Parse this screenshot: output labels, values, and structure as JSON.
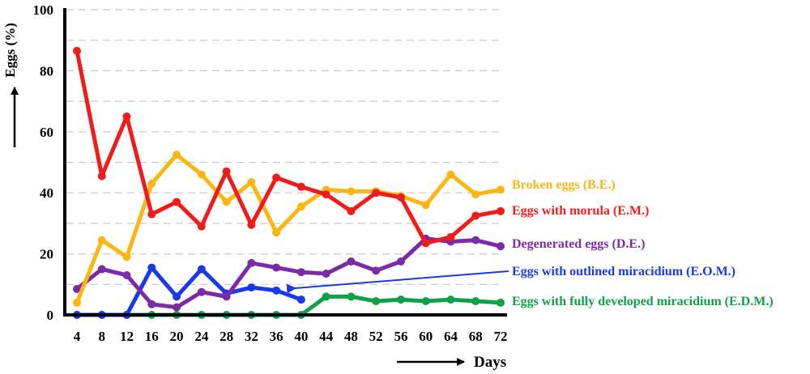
{
  "chart_data": {
    "type": "line",
    "ylabel": "Eggs (%)",
    "xlabel": "Days",
    "ylim": [
      0,
      100
    ],
    "yticks": [
      "0",
      "20",
      "40",
      "60",
      "80",
      "100"
    ],
    "x": [
      4,
      8,
      12,
      16,
      20,
      24,
      28,
      32,
      36,
      40,
      44,
      48,
      52,
      56,
      60,
      64,
      68,
      72
    ],
    "xtick_labels": [
      "4",
      "8",
      "12",
      "16",
      "20",
      "24",
      "28",
      "32",
      "36",
      "40",
      "44",
      "48",
      "52",
      "56",
      "60",
      "64",
      "68",
      "72"
    ],
    "grid": "horizontal dashed",
    "series": [
      {
        "name": "Broken eggs (B.E.)",
        "color": "#fbb612",
        "x": [
          4,
          8,
          12,
          16,
          20,
          24,
          28,
          32,
          36,
          40,
          44,
          48,
          52,
          56,
          60,
          64,
          68,
          72
        ],
        "values": [
          4,
          24.5,
          19,
          43,
          52.5,
          46,
          37,
          43.5,
          27,
          35.5,
          41,
          40.5,
          40.5,
          39,
          36,
          46,
          39.5,
          41
        ]
      },
      {
        "name": "Eggs with morula (E.M.)",
        "color": "#f01c1c",
        "x": [
          4,
          8,
          12,
          16,
          20,
          24,
          28,
          32,
          36,
          40,
          44,
          48,
          52,
          56,
          60,
          64,
          68,
          72
        ],
        "values": [
          86.5,
          45.5,
          65,
          33,
          37,
          29,
          47,
          29.5,
          45,
          42,
          39.5,
          34,
          40,
          38.5,
          23.5,
          25.5,
          32.5,
          34
        ]
      },
      {
        "name": "Degenerated eggs (D.E.)",
        "color": "#7b2aa8",
        "x": [
          4,
          8,
          12,
          16,
          20,
          24,
          28,
          32,
          36,
          40,
          44,
          48,
          52,
          56,
          60,
          64,
          68,
          72
        ],
        "values": [
          8.5,
          15,
          13,
          3.5,
          2.5,
          7.5,
          6,
          17,
          15.5,
          14,
          13.5,
          17.5,
          14.5,
          17.5,
          25,
          24,
          24.5,
          22.5
        ]
      },
      {
        "name": "Eggs with outlined miracidium (E.O.M.)",
        "color": "#1a39e8",
        "x": [
          4,
          8,
          12,
          16,
          20,
          24,
          28,
          32,
          36,
          40
        ],
        "values": [
          0,
          0,
          0,
          15.5,
          6,
          15,
          7,
          9,
          8,
          5
        ]
      },
      {
        "name": "Eggs with fully developed miracidium (E.D.M.)",
        "color": "#0fa14a",
        "x": [
          4,
          8,
          12,
          16,
          20,
          24,
          28,
          32,
          36,
          40,
          44,
          48,
          52,
          56,
          60,
          64,
          68,
          72
        ],
        "values": [
          0,
          0,
          0,
          0,
          0,
          0,
          0,
          0,
          0,
          0,
          6,
          6,
          4.5,
          5,
          4.5,
          5,
          4.5,
          4
        ]
      }
    ]
  }
}
